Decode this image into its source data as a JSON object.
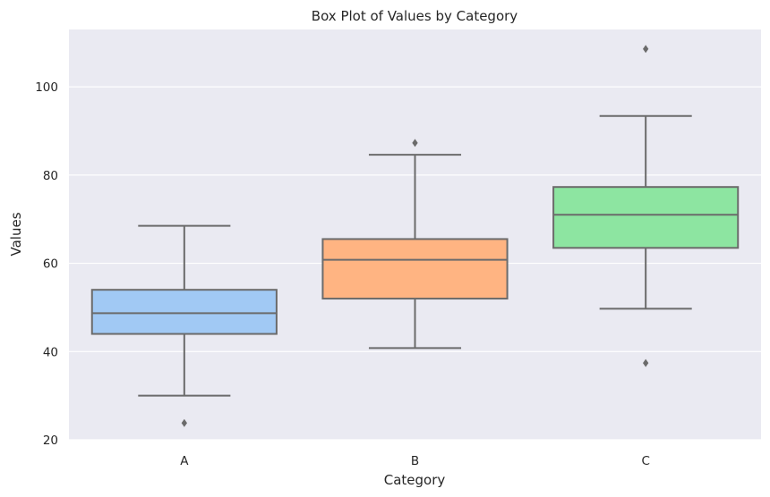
{
  "chart_data": {
    "type": "box",
    "title": "Box Plot of Values by Category",
    "xlabel": "Category",
    "ylabel": "Values",
    "ylim": [
      20,
      113
    ],
    "yticks": [
      20,
      40,
      60,
      80,
      100
    ],
    "grid": true,
    "categories": [
      "A",
      "B",
      "C"
    ],
    "boxes": [
      {
        "category": "A",
        "whisker_low": 30,
        "q1": 44,
        "median": 48.7,
        "q3": 54,
        "whisker_high": 68.5,
        "outliers": [
          23.8
        ],
        "color": "#a1c9f4"
      },
      {
        "category": "B",
        "whisker_low": 40.8,
        "q1": 52,
        "median": 60.8,
        "q3": 65.5,
        "whisker_high": 84.6,
        "outliers": [
          87.3
        ],
        "color": "#ffb482"
      },
      {
        "category": "C",
        "whisker_low": 49.7,
        "q1": 63.5,
        "median": 71,
        "q3": 77.3,
        "whisker_high": 93.4,
        "outliers": [
          108.6,
          37.4
        ],
        "color": "#8de5a1"
      }
    ]
  },
  "colors": {
    "plot_background": "#eaeaf2",
    "grid": "#ffffff",
    "box_edge": "#6b6b6b"
  }
}
